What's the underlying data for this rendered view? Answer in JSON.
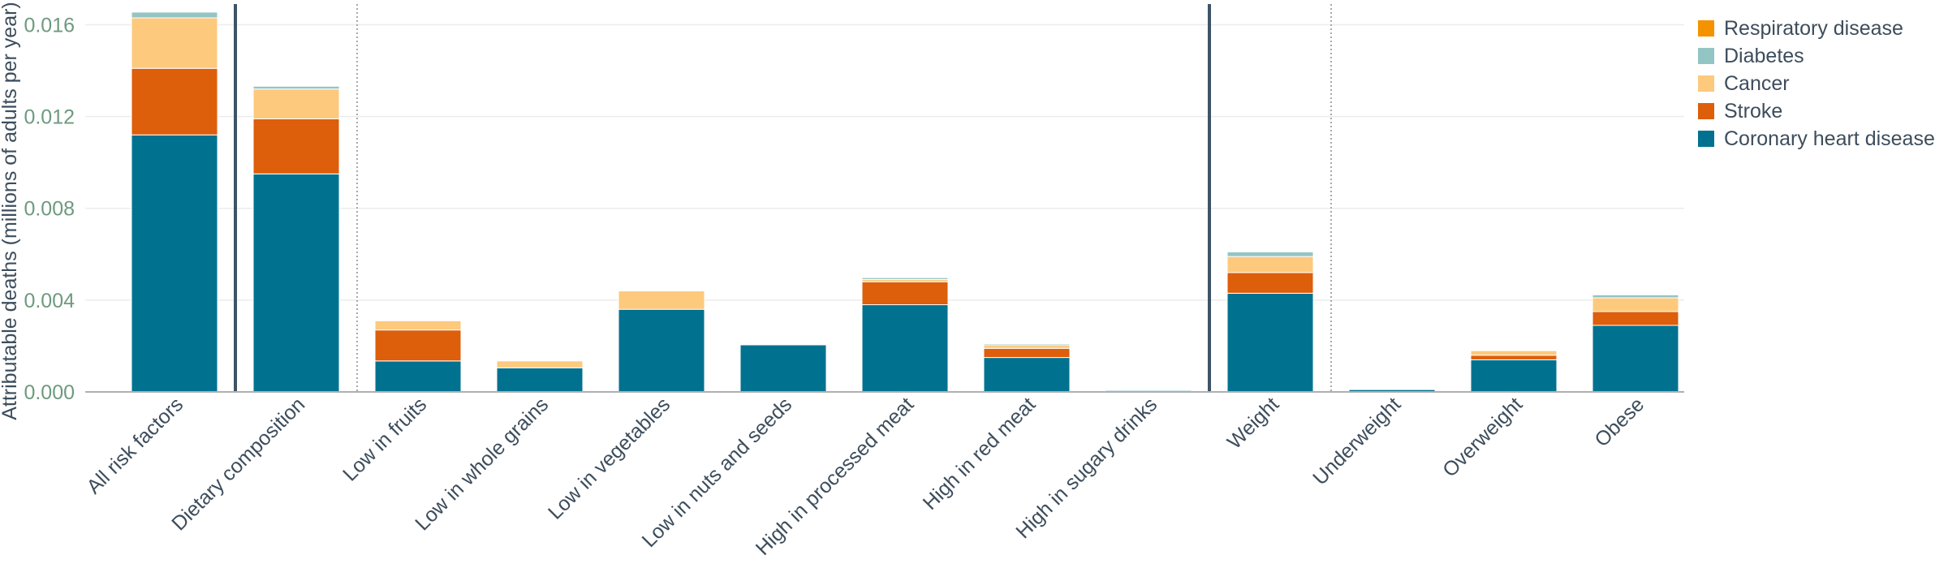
{
  "chart_data": {
    "type": "bar",
    "stacked": true,
    "title": "",
    "xlabel": "",
    "ylabel": "Attributable deaths (millions of adults per year)",
    "ylim": [
      0,
      0.0163
    ],
    "yticks": [
      "0.000",
      "0.004",
      "0.008",
      "0.012",
      "0.016"
    ],
    "ytick_values": [
      0,
      0.004,
      0.008,
      0.012,
      0.016
    ],
    "grid": true,
    "legend_position": "top-right",
    "categories": [
      "All risk factors",
      "Dietary composition",
      "Low in fruits",
      "Low in whole grains",
      "Low in vegetables",
      "Low in nuts and seeds",
      "High in processed meat",
      "High in red meat",
      "High in sugary drinks",
      "Weight",
      "Underweight",
      "Overweight",
      "Obese"
    ],
    "separators": [
      {
        "after_index": 0,
        "style": "solid"
      },
      {
        "after_index": 1,
        "style": "dotted"
      },
      {
        "after_index": 8,
        "style": "solid"
      },
      {
        "after_index": 9,
        "style": "dotted"
      }
    ],
    "series": [
      {
        "name": "Coronary heart disease",
        "color": "#00728f",
        "values": [
          0.0112,
          0.0095,
          0.00135,
          0.00105,
          0.0036,
          0.00205,
          0.0038,
          0.0015,
          6e-05,
          0.0043,
          0.0001,
          0.0014,
          0.0029
        ]
      },
      {
        "name": "Stroke",
        "color": "#dd5e0b",
        "values": [
          0.0029,
          0.0024,
          0.00135,
          0.0,
          0.0,
          0.0,
          0.001,
          0.0004,
          0.0,
          0.0009,
          0.0,
          0.0002,
          0.0006
        ]
      },
      {
        "name": "Cancer",
        "color": "#fdc97d",
        "values": [
          0.0022,
          0.0013,
          0.0004,
          0.0003,
          0.0008,
          0.0,
          0.0001,
          0.00015,
          0.0,
          0.0007,
          0.0,
          0.0002,
          0.0006
        ]
      },
      {
        "name": "Diabetes",
        "color": "#93c5c5",
        "values": [
          0.00025,
          0.00012,
          0.0,
          0.0,
          0.0,
          0.0,
          8e-05,
          5e-05,
          0.0,
          0.0002,
          0.0,
          3e-05,
          0.00013
        ]
      },
      {
        "name": "Respiratory disease",
        "color": "#f59200",
        "values": [
          0.0,
          0.0,
          0.0,
          0.0,
          0.0,
          0.0,
          0.0,
          0.0,
          0.0,
          0.0,
          0.0,
          0.0,
          0.0
        ]
      }
    ],
    "legend_order": [
      "Respiratory disease",
      "Diabetes",
      "Cancer",
      "Stroke",
      "Coronary heart disease"
    ],
    "colors": {
      "axis_tick": "#6e9a7e",
      "text": "#3d4d5c",
      "separator": "#3d5466",
      "grid": "#ececec"
    }
  }
}
